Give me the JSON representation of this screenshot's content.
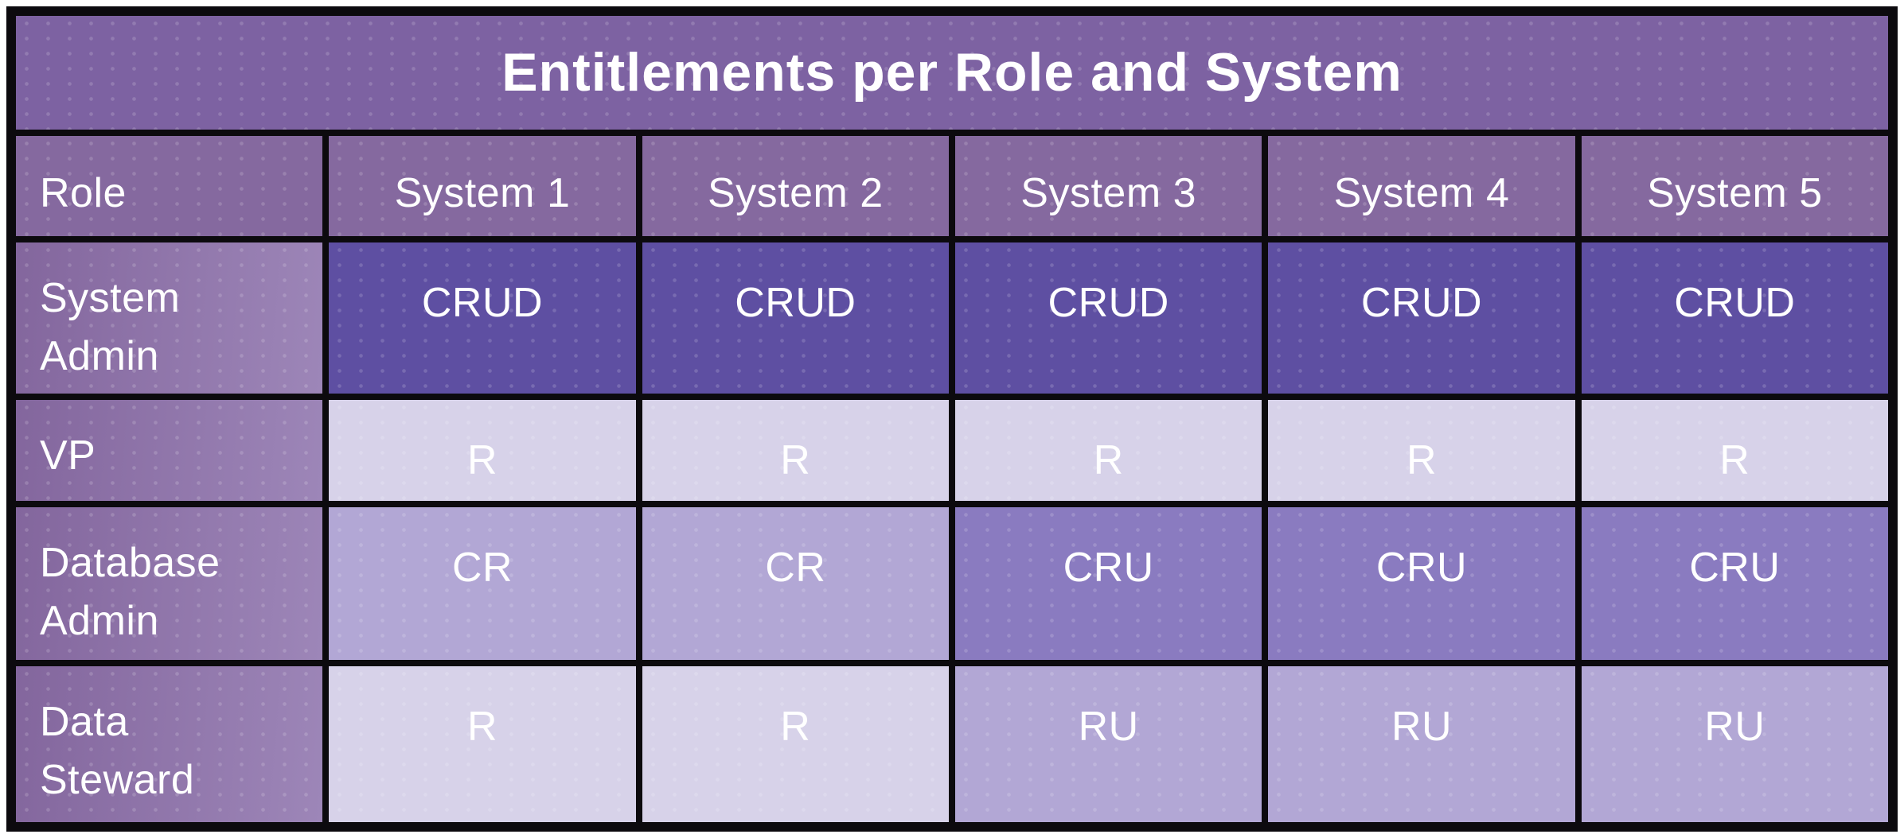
{
  "chart_data": {
    "type": "table",
    "title": "Entitlements per Role and System",
    "columns": [
      "Role",
      "System 1",
      "System 2",
      "System 3",
      "System 4",
      "System 5"
    ],
    "rows": [
      {
        "role": "System Admin",
        "values": [
          "CRUD",
          "CRUD",
          "CRUD",
          "CRUD",
          "CRUD"
        ]
      },
      {
        "role": "VP",
        "values": [
          "R",
          "R",
          "R",
          "R",
          "R"
        ]
      },
      {
        "role": "Database Admin",
        "values": [
          "CR",
          "CR",
          "CRU",
          "CRU",
          "CRU"
        ]
      },
      {
        "role": "Data Steward",
        "values": [
          "R",
          "R",
          "RU",
          "RU",
          "RU"
        ]
      }
    ]
  },
  "colors": {
    "page_bg": "#ffffff",
    "border": "#0c0a0e",
    "text": "#ffffff",
    "title_bg": "#7d62a2",
    "header_bg": "#85699f",
    "label_left": "#83669d",
    "label_right": "#9d86b8",
    "crud": "#5e4fa2",
    "cru": "#8a7bc0",
    "cr_ru": "#b2a7d5",
    "r": "#d7d2e9"
  }
}
